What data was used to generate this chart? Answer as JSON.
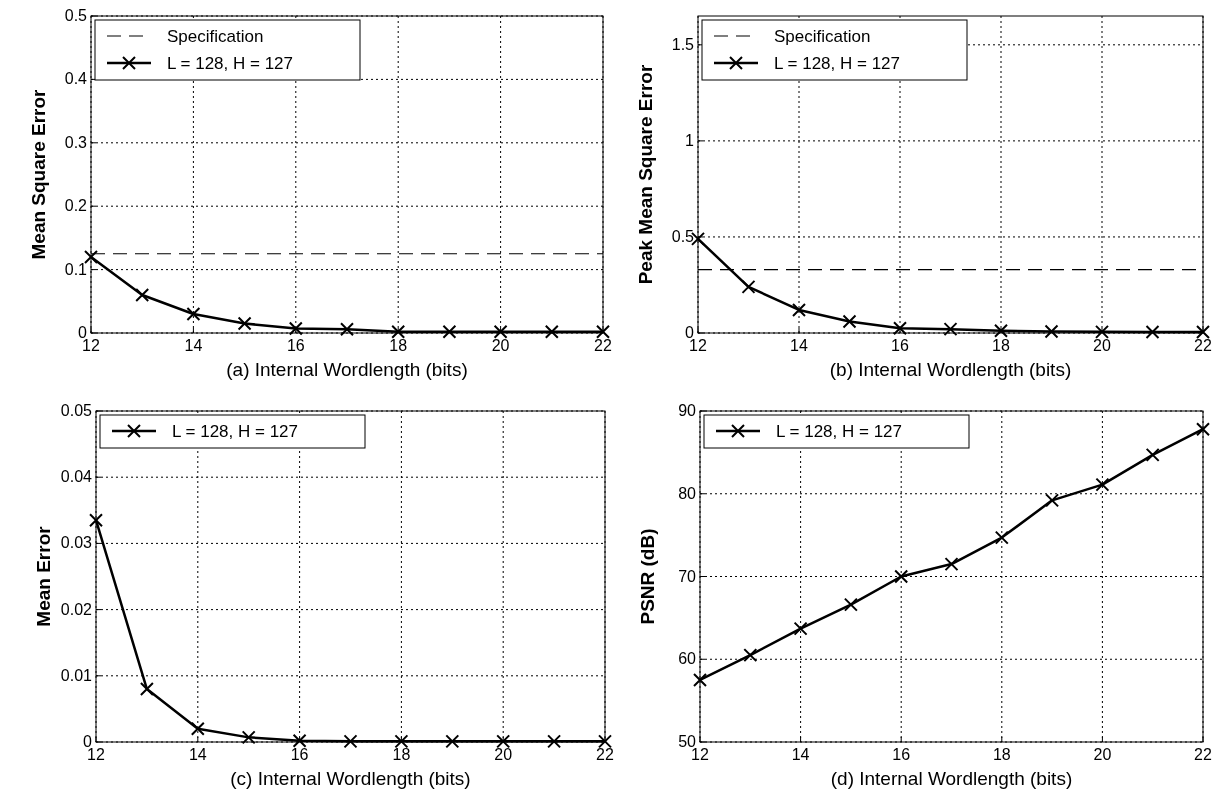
{
  "chart_data": [
    {
      "type": "line",
      "xlabel": "(a) Internal Wordlength (bits)",
      "ylabel": "Mean Square Error",
      "x": [
        12,
        13,
        14,
        15,
        16,
        17,
        18,
        19,
        20,
        21,
        22
      ],
      "series": [
        {
          "name": "L = 128, H = 127",
          "color": "#000000",
          "values": [
            0.12,
            0.06,
            0.03,
            0.015,
            0.007,
            0.006,
            0.002,
            0.002,
            0.002,
            0.002,
            0.002
          ]
        }
      ],
      "xlim": [
        12,
        22
      ],
      "xticks": [
        12,
        14,
        16,
        18,
        20,
        22
      ],
      "ylim": [
        0,
        0.5
      ],
      "yticks": [
        0,
        0.1,
        0.2,
        0.3,
        0.4,
        0.5
      ],
      "ref_lines": [
        {
          "axis": "y",
          "value": 0.125,
          "label": "Specification",
          "line_style": "dashed",
          "color": "#000000"
        }
      ],
      "grid": true,
      "legend": "top left",
      "marker": "cross",
      "line_style": "solid"
    },
    {
      "type": "line",
      "xlabel": "(b) Internal Wordlength (bits)",
      "ylabel": "Peak Mean Square Error",
      "x": [
        12,
        13,
        14,
        15,
        16,
        17,
        18,
        19,
        20,
        21,
        22
      ],
      "series": [
        {
          "name": "L = 128, H = 127",
          "color": "#000000",
          "values": [
            0.49,
            0.24,
            0.12,
            0.06,
            0.025,
            0.02,
            0.012,
            0.008,
            0.006,
            0.005,
            0.005
          ]
        }
      ],
      "xlim": [
        12,
        22
      ],
      "xticks": [
        12,
        14,
        16,
        18,
        20,
        22
      ],
      "ylim": [
        0,
        1.65
      ],
      "yticks": [
        0,
        0.5,
        1,
        1.5
      ],
      "ref_lines": [
        {
          "axis": "y",
          "value": 0.33,
          "label": "Specification",
          "line_style": "dashed",
          "color": "#000000"
        }
      ],
      "grid": true,
      "legend": "top left",
      "marker": "cross",
      "line_style": "solid"
    },
    {
      "type": "line",
      "xlabel": "(c) Internal Wordlength (bits)",
      "ylabel": "Mean Error",
      "x": [
        12,
        13,
        14,
        15,
        16,
        17,
        18,
        19,
        20,
        21,
        22
      ],
      "series": [
        {
          "name": "L = 128, H = 127",
          "color": "#000000",
          "values": [
            0.0335,
            0.008,
            0.002,
            0.0007,
            0.0002,
            0.0001,
            0.0001,
            0.0001,
            0.0001,
            0.0001,
            0.0001
          ]
        }
      ],
      "xlim": [
        12,
        22
      ],
      "xticks": [
        12,
        14,
        16,
        18,
        20,
        22
      ],
      "ylim": [
        0,
        0.05
      ],
      "yticks": [
        0,
        0.01,
        0.02,
        0.03,
        0.04,
        0.05
      ],
      "grid": true,
      "legend": "top left",
      "marker": "cross",
      "line_style": "solid"
    },
    {
      "type": "line",
      "xlabel": "(d) Internal Wordlength (bits)",
      "ylabel": "PSNR (dB)",
      "x": [
        12,
        13,
        14,
        15,
        16,
        17,
        18,
        19,
        20,
        21,
        22
      ],
      "series": [
        {
          "name": "L = 128, H = 127",
          "color": "#000000",
          "values": [
            57.5,
            60.5,
            63.7,
            66.6,
            70,
            71.5,
            74.7,
            79.2,
            81.1,
            84.7,
            87.8
          ]
        }
      ],
      "xlim": [
        12,
        22
      ],
      "xticks": [
        12,
        14,
        16,
        18,
        20,
        22
      ],
      "ylim": [
        50,
        90
      ],
      "yticks": [
        50,
        60,
        70,
        80,
        90
      ],
      "grid": true,
      "legend": "top left",
      "marker": "cross",
      "line_style": "solid"
    }
  ]
}
